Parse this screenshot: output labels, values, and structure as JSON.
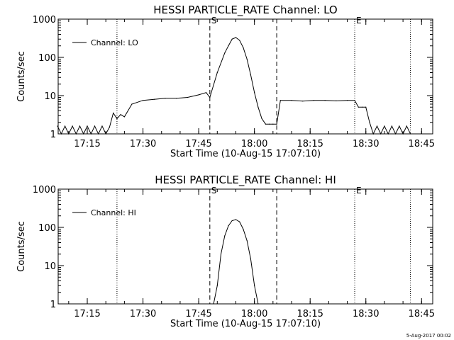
{
  "footer_stamp": "5-Aug-2017 00:02",
  "chart_data": [
    {
      "type": "line",
      "title": "HESSI PARTICLE_RATE Channel: LO",
      "xlabel": "Start Time (10-Aug-15 17:07:10)",
      "ylabel": "Counts/sec",
      "yscale": "log",
      "ylim": [
        1,
        1000
      ],
      "xlim": [
        "17:07:10",
        "18:48:00"
      ],
      "xticks": [
        "17:15",
        "17:30",
        "17:45",
        "18:00",
        "18:15",
        "18:30",
        "18:45"
      ],
      "yticks": [
        "1",
        "10",
        "100",
        "1000"
      ],
      "grid": false,
      "legend": {
        "position": "top-left",
        "entries": [
          "Channel: LO"
        ]
      },
      "markers": [
        {
          "time": "17:23",
          "style": "dotted",
          "label": ""
        },
        {
          "time": "17:48",
          "style": "dashed",
          "label": "S"
        },
        {
          "time": "18:06",
          "style": "dashed",
          "label": ""
        },
        {
          "time": "18:27",
          "style": "dotted",
          "label": "E"
        },
        {
          "time": "18:42",
          "style": "dotted",
          "label": ""
        }
      ],
      "series": [
        {
          "name": "Channel: LO",
          "x": [
            "17:07",
            "17:08",
            "17:09",
            "17:10",
            "17:11",
            "17:12",
            "17:13",
            "17:14",
            "17:15",
            "17:16",
            "17:17",
            "17:18",
            "17:19",
            "17:20",
            "17:21",
            "17:22",
            "17:23",
            "17:24",
            "17:25",
            "17:27",
            "17:30",
            "17:33",
            "17:36",
            "17:39",
            "17:42",
            "17:45",
            "17:47",
            "17:48",
            "17:50",
            "17:52",
            "17:53",
            "17:54",
            "17:55",
            "17:56",
            "17:57",
            "17:58",
            "17:59",
            "18:00",
            "18:01",
            "18:02",
            "18:03",
            "18:04",
            "18:05",
            "18:06",
            "18:07",
            "18:10",
            "18:13",
            "18:16",
            "18:19",
            "18:22",
            "18:25",
            "18:27",
            "18:28",
            "18:29",
            "18:30",
            "18:31",
            "18:32",
            "18:33",
            "18:34",
            "18:35",
            "18:36",
            "18:37",
            "18:38",
            "18:39",
            "18:40",
            "18:41",
            "18:42"
          ],
          "y": [
            1.6,
            1,
            1.6,
            1,
            1.6,
            1,
            1.6,
            1,
            1.6,
            1,
            1.6,
            1,
            1.6,
            1,
            1.5,
            3.5,
            2.5,
            3.2,
            2.8,
            6,
            7.5,
            8,
            8.5,
            8.5,
            9,
            10.5,
            12,
            9,
            40,
            130,
            200,
            300,
            330,
            280,
            180,
            90,
            35,
            12,
            5,
            2.5,
            1.8,
            1.8,
            1.8,
            1.8,
            7.5,
            7.5,
            7.2,
            7.5,
            7.5,
            7.3,
            7.5,
            7.5,
            5,
            5,
            5,
            2,
            1,
            1.6,
            1,
            1.6,
            1,
            1.6,
            1,
            1.6,
            1,
            1.6,
            1
          ]
        }
      ]
    },
    {
      "type": "line",
      "title": "HESSI PARTICLE_RATE Channel: HI",
      "xlabel": "Start Time (10-Aug-15 17:07:10)",
      "ylabel": "Counts/sec",
      "yscale": "log",
      "ylim": [
        1,
        1000
      ],
      "xlim": [
        "17:07:10",
        "18:48:00"
      ],
      "xticks": [
        "17:15",
        "17:30",
        "17:45",
        "18:00",
        "18:15",
        "18:30",
        "18:45"
      ],
      "yticks": [
        "1",
        "10",
        "100",
        "1000"
      ],
      "grid": false,
      "legend": {
        "position": "top-left",
        "entries": [
          "Channel: HI"
        ]
      },
      "markers": [
        {
          "time": "17:23",
          "style": "dotted",
          "label": ""
        },
        {
          "time": "17:48",
          "style": "dashed",
          "label": "S"
        },
        {
          "time": "18:06",
          "style": "dashed",
          "label": ""
        },
        {
          "time": "18:27",
          "style": "dotted",
          "label": "E"
        },
        {
          "time": "18:42",
          "style": "dotted",
          "label": ""
        }
      ],
      "series": [
        {
          "name": "Channel: HI",
          "x": [
            "17:49",
            "17:50",
            "17:51",
            "17:52",
            "17:53",
            "17:54",
            "17:55",
            "17:56",
            "17:57",
            "17:58",
            "17:59",
            "18:00",
            "18:01"
          ],
          "y": [
            1,
            3,
            20,
            60,
            110,
            150,
            160,
            140,
            90,
            45,
            15,
            3,
            1
          ]
        }
      ]
    }
  ]
}
